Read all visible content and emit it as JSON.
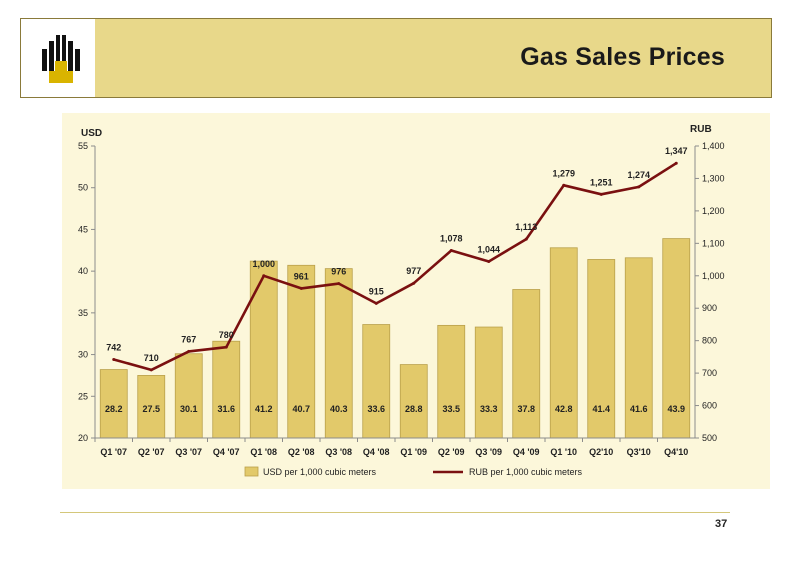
{
  "page": {
    "title": "Gas Sales Prices",
    "page_number": "37"
  },
  "colors": {
    "header_band": "#e8d88a",
    "bar_fill": "#e2c96a",
    "line": "#7a1010",
    "panel": "#fcf7da"
  },
  "logo": {
    "icon": "company-logo-icon"
  },
  "chart_data": {
    "type": "bar",
    "categories": [
      "Q1 '07",
      "Q2 '07",
      "Q3 '07",
      "Q4 '07",
      "Q1 '08",
      "Q2 '08",
      "Q3 '08",
      "Q4 '08",
      "Q1 '09",
      "Q2 '09",
      "Q3 '09",
      "Q4 '09",
      "Q1 '10",
      "Q2'10",
      "Q3'10",
      "Q4'10"
    ],
    "series": [
      {
        "name": "USD per 1,000 cubic meters",
        "type": "bar",
        "axis": "left",
        "values": [
          28.2,
          27.5,
          30.1,
          31.6,
          41.2,
          40.7,
          40.3,
          33.6,
          28.8,
          33.5,
          33.3,
          37.8,
          42.8,
          41.4,
          41.6,
          43.9
        ],
        "labels": [
          "28.2",
          "27.5",
          "30.1",
          "31.6",
          "41.2",
          "40.7",
          "40.3",
          "33.6",
          "28.8",
          "33.5",
          "33.3",
          "37.8",
          "42.8",
          "41.4",
          "41.6",
          "43.9"
        ]
      },
      {
        "name": "RUB per 1,000 cubic meters",
        "type": "line",
        "axis": "right",
        "values": [
          742,
          710,
          767,
          780,
          1000,
          961,
          976,
          915,
          977,
          1078,
          1044,
          1113,
          1279,
          1251,
          1274,
          1347
        ],
        "labels": [
          "742",
          "710",
          "767",
          "780",
          "1,000",
          "961",
          "976",
          "915",
          "977",
          "1,078",
          "1,044",
          "1,113",
          "1,279",
          "1,251",
          "1,274",
          "1,347"
        ]
      }
    ],
    "y_left": {
      "label": "USD",
      "min": 20,
      "max": 55,
      "ticks": [
        "20",
        "25",
        "30",
        "35",
        "40",
        "45",
        "50",
        "55"
      ]
    },
    "y_right": {
      "label": "RUB",
      "min": 500,
      "max": 1400,
      "ticks": [
        "500",
        "600",
        "700",
        "800",
        "900",
        "1,000",
        "1,100",
        "1,200",
        "1,300",
        "1,400"
      ]
    },
    "legend": {
      "position": "bottom",
      "items": [
        "USD per 1,000 cubic meters",
        "RUB per 1,000 cubic meters"
      ]
    },
    "grid": false
  }
}
